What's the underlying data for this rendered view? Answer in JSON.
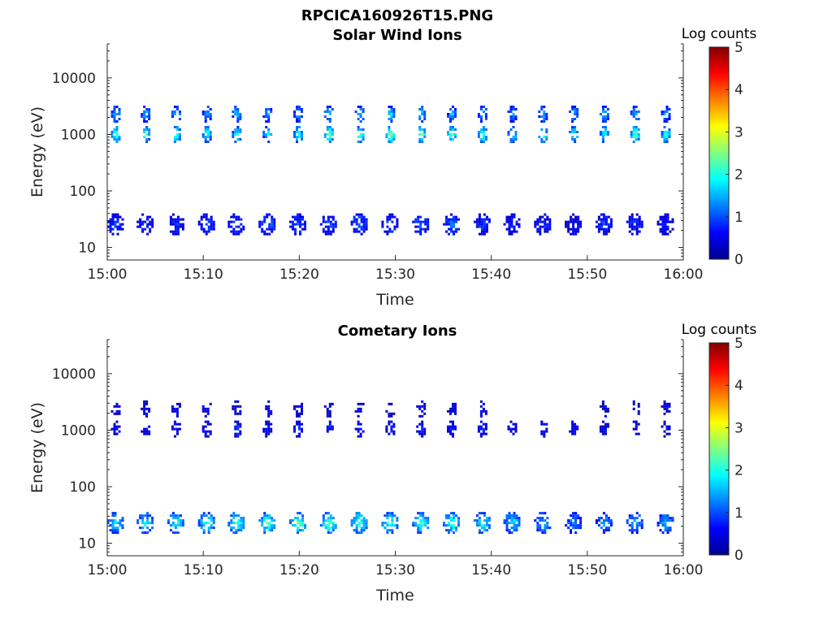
{
  "figure_title": "RPCICA160926T15.PNG",
  "colormap": {
    "name": "jet",
    "colors": [
      "#00008f",
      "#0000ff",
      "#0080ff",
      "#00ffff",
      "#80ff80",
      "#ffff00",
      "#ff8000",
      "#ff0000",
      "#800000"
    ]
  },
  "chart_data": [
    {
      "type": "heatmap",
      "title": "Solar Wind Ions",
      "xlabel": "Time",
      "ylabel": "Energy (eV)",
      "colorbar_label": "Log counts",
      "colorbar_ticks": [
        "0",
        "1",
        "2",
        "3",
        "4",
        "5"
      ],
      "colorbar_range": [
        0,
        5
      ],
      "x_ticks": [
        "15:00",
        "15:10",
        "15:20",
        "15:30",
        "15:40",
        "15:50",
        "16:00"
      ],
      "x_range_min": [
        0,
        60
      ],
      "y_scale": "log",
      "y_ticks": [
        "10",
        "100",
        "1000",
        "10000"
      ],
      "y_range": [
        6,
        40000
      ],
      "bursts": [
        {
          "t": 0.8,
          "e": 1050,
          "v": 2.4
        },
        {
          "t": 0.8,
          "e": 2400,
          "v": 1.8
        },
        {
          "t": 0.8,
          "e": 27,
          "v": 0.9
        },
        {
          "t": 3.9,
          "e": 1050,
          "v": 2.3
        },
        {
          "t": 3.9,
          "e": 2400,
          "v": 1.6
        },
        {
          "t": 3.9,
          "e": 27,
          "v": 0.8
        },
        {
          "t": 7.1,
          "e": 1050,
          "v": 2.3
        },
        {
          "t": 7.1,
          "e": 2400,
          "v": 1.7
        },
        {
          "t": 7.1,
          "e": 27,
          "v": 0.8
        },
        {
          "t": 10.3,
          "e": 1050,
          "v": 2.2
        },
        {
          "t": 10.3,
          "e": 2400,
          "v": 1.6
        },
        {
          "t": 10.3,
          "e": 27,
          "v": 0.9
        },
        {
          "t": 13.4,
          "e": 1050,
          "v": 2.1
        },
        {
          "t": 13.4,
          "e": 2400,
          "v": 1.7
        },
        {
          "t": 13.4,
          "e": 27,
          "v": 1.0
        },
        {
          "t": 16.6,
          "e": 1050,
          "v": 2.0
        },
        {
          "t": 16.6,
          "e": 2400,
          "v": 1.5
        },
        {
          "t": 16.6,
          "e": 27,
          "v": 1.2
        },
        {
          "t": 19.8,
          "e": 1050,
          "v": 2.2
        },
        {
          "t": 19.8,
          "e": 2400,
          "v": 1.6
        },
        {
          "t": 19.8,
          "e": 27,
          "v": 1.1
        },
        {
          "t": 23.0,
          "e": 1050,
          "v": 2.6
        },
        {
          "t": 23.0,
          "e": 2400,
          "v": 1.8
        },
        {
          "t": 23.0,
          "e": 27,
          "v": 1.0
        },
        {
          "t": 26.2,
          "e": 1050,
          "v": 2.5
        },
        {
          "t": 26.2,
          "e": 2400,
          "v": 1.7
        },
        {
          "t": 26.2,
          "e": 27,
          "v": 1.2
        },
        {
          "t": 29.4,
          "e": 1050,
          "v": 2.7
        },
        {
          "t": 29.4,
          "e": 2400,
          "v": 1.8
        },
        {
          "t": 29.4,
          "e": 27,
          "v": 1.0
        },
        {
          "t": 32.6,
          "e": 1050,
          "v": 2.6
        },
        {
          "t": 32.6,
          "e": 2400,
          "v": 1.7
        },
        {
          "t": 32.6,
          "e": 27,
          "v": 1.1
        },
        {
          "t": 35.8,
          "e": 1050,
          "v": 2.5
        },
        {
          "t": 35.8,
          "e": 2400,
          "v": 1.7
        },
        {
          "t": 35.8,
          "e": 27,
          "v": 1.2
        },
        {
          "t": 39.0,
          "e": 1050,
          "v": 2.3
        },
        {
          "t": 39.0,
          "e": 2400,
          "v": 1.6
        },
        {
          "t": 39.0,
          "e": 27,
          "v": 0.9
        },
        {
          "t": 42.1,
          "e": 1050,
          "v": 2.2
        },
        {
          "t": 42.1,
          "e": 2400,
          "v": 1.5
        },
        {
          "t": 42.1,
          "e": 27,
          "v": 0.8
        },
        {
          "t": 45.3,
          "e": 1050,
          "v": 2.2
        },
        {
          "t": 45.3,
          "e": 2400,
          "v": 1.6
        },
        {
          "t": 45.3,
          "e": 27,
          "v": 0.8
        },
        {
          "t": 48.5,
          "e": 1050,
          "v": 2.2
        },
        {
          "t": 48.5,
          "e": 2400,
          "v": 1.5
        },
        {
          "t": 48.5,
          "e": 27,
          "v": 0.7
        },
        {
          "t": 51.7,
          "e": 1050,
          "v": 2.2
        },
        {
          "t": 51.7,
          "e": 2400,
          "v": 1.6
        },
        {
          "t": 51.7,
          "e": 27,
          "v": 0.9
        },
        {
          "t": 54.9,
          "e": 1050,
          "v": 2.6
        },
        {
          "t": 54.9,
          "e": 2400,
          "v": 1.7
        },
        {
          "t": 54.9,
          "e": 27,
          "v": 0.8
        },
        {
          "t": 58.1,
          "e": 1050,
          "v": 2.3
        },
        {
          "t": 58.1,
          "e": 2400,
          "v": 1.6
        },
        {
          "t": 58.1,
          "e": 27,
          "v": 0.8
        }
      ]
    },
    {
      "type": "heatmap",
      "title": "Cometary Ions",
      "xlabel": "Time",
      "ylabel": "Energy (eV)",
      "colorbar_label": "Log counts",
      "colorbar_ticks": [
        "0",
        "1",
        "2",
        "3",
        "4",
        "5"
      ],
      "colorbar_range": [
        0,
        5
      ],
      "x_ticks": [
        "15:00",
        "15:10",
        "15:20",
        "15:30",
        "15:40",
        "15:50",
        "16:00"
      ],
      "x_range_min": [
        0,
        60
      ],
      "y_scale": "log",
      "y_ticks": [
        "10",
        "100",
        "1000",
        "10000"
      ],
      "y_range": [
        6,
        40000
      ],
      "bursts": [
        {
          "t": 0.8,
          "e": 24,
          "v": 1.8
        },
        {
          "t": 0.8,
          "e": 1100,
          "v": 0.8
        },
        {
          "t": 0.8,
          "e": 2500,
          "v": 0.6
        },
        {
          "t": 3.9,
          "e": 24,
          "v": 1.9
        },
        {
          "t": 3.9,
          "e": 1100,
          "v": 0.7
        },
        {
          "t": 3.9,
          "e": 2500,
          "v": 0.5
        },
        {
          "t": 7.1,
          "e": 24,
          "v": 2.0
        },
        {
          "t": 7.1,
          "e": 1100,
          "v": 0.7
        },
        {
          "t": 7.1,
          "e": 2500,
          "v": 0.5
        },
        {
          "t": 10.3,
          "e": 24,
          "v": 2.1
        },
        {
          "t": 10.3,
          "e": 1100,
          "v": 0.8
        },
        {
          "t": 10.3,
          "e": 2500,
          "v": 0.5
        },
        {
          "t": 13.4,
          "e": 24,
          "v": 2.2
        },
        {
          "t": 13.4,
          "e": 1100,
          "v": 0.9
        },
        {
          "t": 13.4,
          "e": 2500,
          "v": 0.6
        },
        {
          "t": 16.6,
          "e": 24,
          "v": 2.3
        },
        {
          "t": 16.6,
          "e": 1100,
          "v": 0.8
        },
        {
          "t": 16.6,
          "e": 2500,
          "v": 0.5
        },
        {
          "t": 19.8,
          "e": 24,
          "v": 2.4
        },
        {
          "t": 19.8,
          "e": 1100,
          "v": 0.8
        },
        {
          "t": 19.8,
          "e": 2500,
          "v": 0.5
        },
        {
          "t": 23.0,
          "e": 24,
          "v": 2.4
        },
        {
          "t": 23.0,
          "e": 1100,
          "v": 0.8
        },
        {
          "t": 23.0,
          "e": 2500,
          "v": 0.5
        },
        {
          "t": 26.2,
          "e": 24,
          "v": 2.3
        },
        {
          "t": 26.2,
          "e": 1100,
          "v": 0.7
        },
        {
          "t": 26.2,
          "e": 2500,
          "v": 0.5
        },
        {
          "t": 29.4,
          "e": 24,
          "v": 2.2
        },
        {
          "t": 29.4,
          "e": 1100,
          "v": 0.8
        },
        {
          "t": 29.4,
          "e": 2500,
          "v": 0.4
        },
        {
          "t": 32.6,
          "e": 24,
          "v": 2.2
        },
        {
          "t": 32.6,
          "e": 1100,
          "v": 0.7
        },
        {
          "t": 32.6,
          "e": 2500,
          "v": 0.5
        },
        {
          "t": 35.8,
          "e": 24,
          "v": 2.3
        },
        {
          "t": 35.8,
          "e": 1100,
          "v": 0.7
        },
        {
          "t": 35.8,
          "e": 2500,
          "v": 0.5
        },
        {
          "t": 39.0,
          "e": 24,
          "v": 2.1
        },
        {
          "t": 39.0,
          "e": 1100,
          "v": 0.7
        },
        {
          "t": 39.0,
          "e": 2500,
          "v": 0.5
        },
        {
          "t": 42.1,
          "e": 24,
          "v": 1.9
        },
        {
          "t": 42.1,
          "e": 1100,
          "v": 0.6
        },
        {
          "t": 45.3,
          "e": 24,
          "v": 1.6
        },
        {
          "t": 45.3,
          "e": 1100,
          "v": 0.6
        },
        {
          "t": 48.5,
          "e": 24,
          "v": 1.4
        },
        {
          "t": 48.5,
          "e": 1100,
          "v": 0.6
        },
        {
          "t": 51.7,
          "e": 24,
          "v": 1.5
        },
        {
          "t": 51.7,
          "e": 1100,
          "v": 0.6
        },
        {
          "t": 51.7,
          "e": 2500,
          "v": 0.4
        },
        {
          "t": 54.9,
          "e": 24,
          "v": 1.6
        },
        {
          "t": 54.9,
          "e": 1100,
          "v": 0.6
        },
        {
          "t": 54.9,
          "e": 2500,
          "v": 0.4
        },
        {
          "t": 58.1,
          "e": 24,
          "v": 1.6
        },
        {
          "t": 58.1,
          "e": 1100,
          "v": 0.6
        },
        {
          "t": 58.1,
          "e": 2500,
          "v": 0.4
        }
      ]
    }
  ]
}
